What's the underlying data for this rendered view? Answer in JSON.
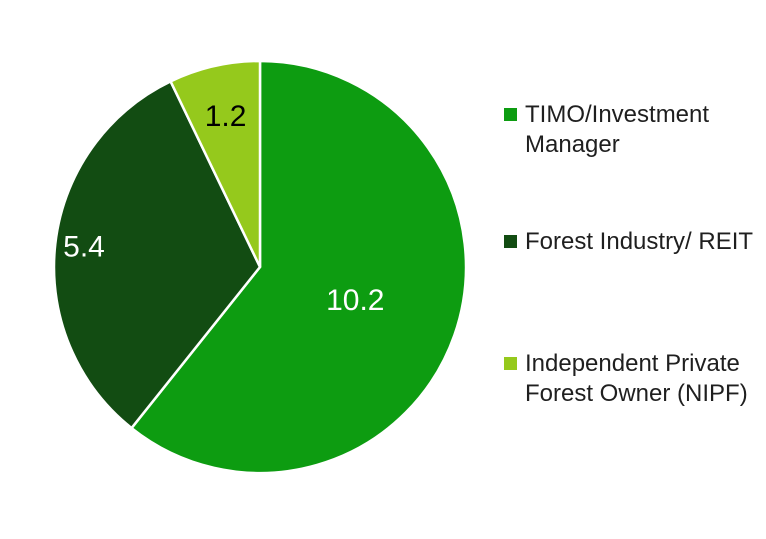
{
  "chart_data": {
    "type": "pie",
    "title": "",
    "legend_position": "right",
    "background_color": "#ffffff",
    "separator_color": "#ffffff",
    "direction": "clockwise",
    "start_angle_deg": 0,
    "total": 16.8,
    "slices": [
      {
        "id": "timo",
        "label": "TIMO/Investment Manager",
        "value": 10.2,
        "data_label": "10.2",
        "color": "#0d9c11",
        "label_color": "#ffffff",
        "label_radius": 0.49
      },
      {
        "id": "forest-industry",
        "label": "Forest Industry/ REIT",
        "value": 5.4,
        "data_label": "5.4",
        "color": "#124c12",
        "label_color": "#ffffff",
        "label_radius": 0.86
      },
      {
        "id": "nipf",
        "label": "Independent Private Forest Owner (NIPF)",
        "value": 1.2,
        "data_label": "1.2",
        "color": "#95c91c",
        "label_color": "#000000",
        "label_radius": 0.75
      }
    ]
  }
}
